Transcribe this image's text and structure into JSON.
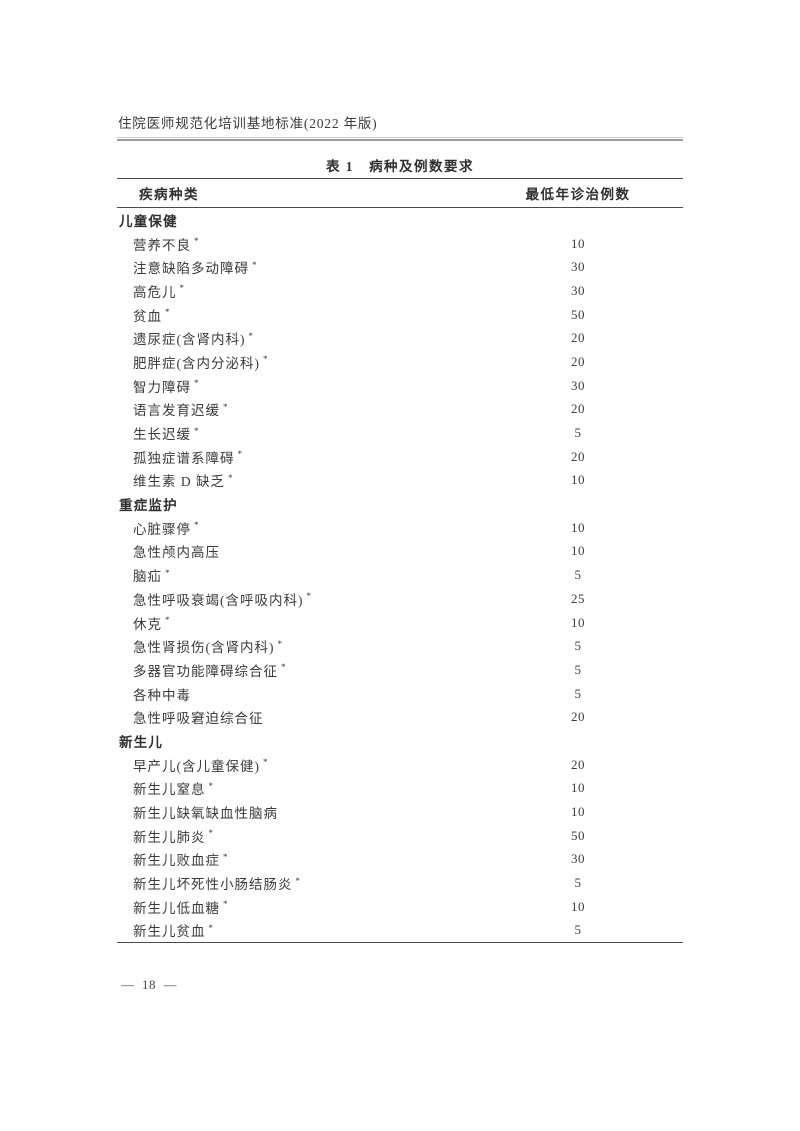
{
  "page": {
    "header_title": "住院医师规范化培训基地标准(2022 年版)",
    "footer_page_number": "—  18  —"
  },
  "table": {
    "title_label": "表 1",
    "title_text": "病种及例数要求",
    "col_disease": "疾病种类",
    "col_count": "最低年诊治例数",
    "sections": [
      {
        "name": "儿童保健",
        "rows": [
          {
            "disease": "营养不良",
            "star": "*",
            "count": "10"
          },
          {
            "disease": "注意缺陷多动障碍",
            "star": "*",
            "count": "30"
          },
          {
            "disease": "高危儿",
            "star": "*",
            "count": "30"
          },
          {
            "disease": "贫血",
            "star": "*",
            "count": "50"
          },
          {
            "disease": "遗尿症(含肾内科)",
            "star": "*",
            "count": "20"
          },
          {
            "disease": "肥胖症(含内分泌科)",
            "star": "*",
            "count": "20"
          },
          {
            "disease": "智力障碍",
            "star": "*",
            "count": "30"
          },
          {
            "disease": "语言发育迟缓",
            "star": "*",
            "count": "20"
          },
          {
            "disease": "生长迟缓",
            "star": "*",
            "count": "5"
          },
          {
            "disease": "孤独症谱系障碍",
            "star": "*",
            "count": "20"
          },
          {
            "disease": "维生素 D 缺乏",
            "star": "*",
            "count": "10"
          }
        ]
      },
      {
        "name": "重症监护",
        "rows": [
          {
            "disease": "心脏骤停",
            "star": "*",
            "count": "10"
          },
          {
            "disease": "急性颅内高压",
            "star": "",
            "count": "10"
          },
          {
            "disease": "脑疝",
            "star": "*",
            "count": "5"
          },
          {
            "disease": "急性呼吸衰竭(含呼吸内科)",
            "star": "*",
            "count": "25"
          },
          {
            "disease": "休克",
            "star": "*",
            "count": "10"
          },
          {
            "disease": "急性肾损伤(含肾内科)",
            "star": "*",
            "count": "5"
          },
          {
            "disease": "多器官功能障碍综合征",
            "star": "*",
            "count": "5"
          },
          {
            "disease": "各种中毒",
            "star": "",
            "count": "5"
          },
          {
            "disease": "急性呼吸窘迫综合征",
            "star": "",
            "count": "20"
          }
        ]
      },
      {
        "name": "新生儿",
        "rows": [
          {
            "disease": "早产儿(含儿童保健)",
            "star": "*",
            "count": "20"
          },
          {
            "disease": "新生儿窒息",
            "star": "*",
            "count": "10"
          },
          {
            "disease": "新生儿缺氧缺血性脑病",
            "star": "",
            "count": "10"
          },
          {
            "disease": "新生儿肺炎",
            "star": "*",
            "count": "50"
          },
          {
            "disease": "新生儿败血症",
            "star": "*",
            "count": "30"
          },
          {
            "disease": "新生儿坏死性小肠结肠炎",
            "star": "*",
            "count": "5"
          },
          {
            "disease": "新生儿低血糖",
            "star": "*",
            "count": "10"
          },
          {
            "disease": "新生儿贫血",
            "star": "*",
            "count": "5"
          }
        ]
      }
    ]
  }
}
